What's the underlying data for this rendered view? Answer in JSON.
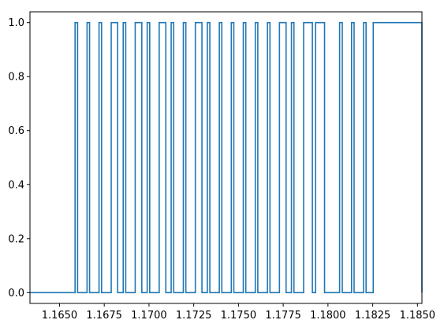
{
  "chart_data": {
    "type": "line",
    "title": "",
    "xlabel": "",
    "ylabel": "",
    "xlim": [
      1.16335,
      1.18525
    ],
    "ylim": [
      -0.04,
      1.04
    ],
    "grid": false,
    "legend": "none",
    "series_color": "#1f77b4",
    "x_ticks": [
      1.165,
      1.1675,
      1.17,
      1.1725,
      1.175,
      1.1775,
      1.18,
      1.1825,
      1.185
    ],
    "x_tick_labels": [
      "1.1650",
      "1.1675",
      "1.1700",
      "1.1725",
      "1.1750",
      "1.1775",
      "1.1800",
      "1.1825",
      "1.1850"
    ],
    "y_ticks": [
      0.0,
      0.2,
      0.4,
      0.6,
      0.8,
      1.0
    ],
    "y_tick_labels": [
      "0.0",
      "0.2",
      "0.4",
      "0.6",
      "0.8",
      "1.0"
    ],
    "series": [
      {
        "step": "post",
        "x": [
          1.16335,
          1.16587,
          1.16601,
          1.16654,
          1.16668,
          1.16721,
          1.16735,
          1.16789,
          1.16825,
          1.16856,
          1.1687,
          1.16923,
          1.1696,
          1.1699,
          1.17004,
          1.17057,
          1.17094,
          1.17124,
          1.17138,
          1.17192,
          1.17206,
          1.17259,
          1.17296,
          1.17326,
          1.1734,
          1.17393,
          1.17407,
          1.1746,
          1.17474,
          1.17527,
          1.17541,
          1.17594,
          1.17608,
          1.17662,
          1.17676,
          1.17729,
          1.17766,
          1.17796,
          1.1781,
          1.17864,
          1.17913,
          1.17931,
          1.17981,
          1.18065,
          1.1808,
          1.18132,
          1.18146,
          1.18199,
          1.18213,
          1.18253,
          1.18525
        ],
        "y": [
          0,
          1,
          0,
          1,
          0,
          1,
          0,
          1,
          0,
          1,
          0,
          1,
          0,
          1,
          0,
          1,
          0,
          1,
          0,
          1,
          0,
          1,
          0,
          1,
          0,
          1,
          0,
          1,
          0,
          1,
          0,
          1,
          0,
          1,
          0,
          1,
          0,
          1,
          0,
          1,
          0,
          1,
          0,
          1,
          0,
          1,
          0,
          1,
          0,
          1,
          0
        ]
      }
    ]
  }
}
